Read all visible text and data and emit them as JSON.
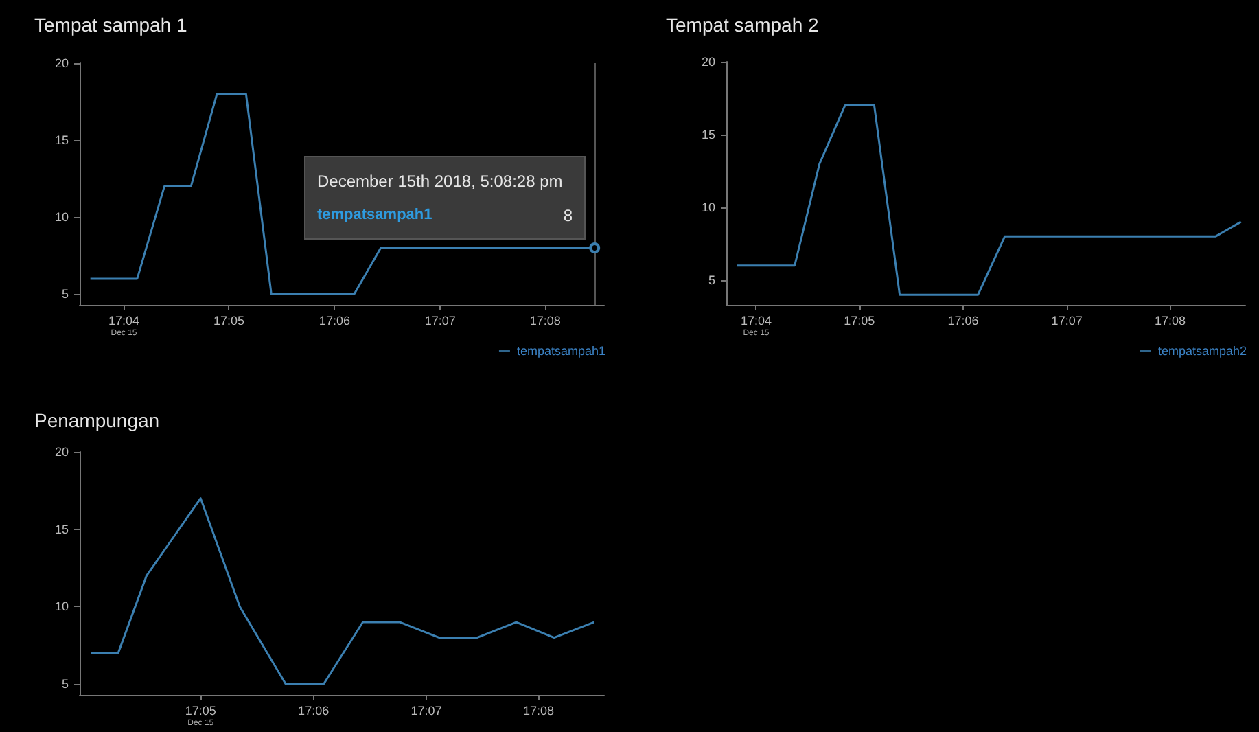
{
  "chart_data": [
    {
      "type": "line",
      "title": "Tempat sampah 1",
      "x": [
        17.0614,
        17.0688,
        17.0731,
        17.0773,
        17.0814,
        17.086,
        17.09,
        17.1031,
        17.1073,
        17.1411
      ],
      "series": [
        {
          "name": "tempatsampah1",
          "color": "#3b7fb0",
          "values": [
            6,
            6,
            12,
            12,
            18,
            18,
            5,
            5,
            8,
            8
          ]
        }
      ],
      "xlim": [
        17.0597,
        17.1426
      ],
      "xticks": [
        {
          "value": 17.0667,
          "label": "17:04\nDec 15"
        },
        {
          "value": 17.0833,
          "label": "17:05"
        },
        {
          "value": 17.1,
          "label": "17:06"
        },
        {
          "value": 17.1167,
          "label": "17:07"
        },
        {
          "value": 17.1333,
          "label": "17:08"
        }
      ],
      "ylim": [
        4.3,
        20
      ],
      "yticks": [
        5,
        10,
        15,
        20
      ],
      "grid": false,
      "legend": "bottom right",
      "marker": "none",
      "line_style": "solid",
      "ref_lines": [
        {
          "axis": "x",
          "value": 17.1411,
          "color": "#555555"
        }
      ],
      "annotations": [
        "December 15th 2018, 5:08:28 pm",
        "8"
      ]
    },
    {
      "type": "line",
      "title": "Tempat sampah 2",
      "x": [
        17.0636,
        17.0729,
        17.0769,
        17.081,
        17.0857,
        17.0898,
        17.1024,
        17.1067,
        17.1406,
        17.1447
      ],
      "series": [
        {
          "name": "tempatsampah2",
          "color": "#3b7fb0",
          "values": [
            6,
            6,
            13,
            17,
            17,
            4,
            4,
            8,
            8,
            9
          ]
        }
      ],
      "xlim": [
        17.0619,
        17.1454
      ],
      "xticks": [
        {
          "value": 17.0667,
          "label": "17:04\nDec 15"
        },
        {
          "value": 17.0833,
          "label": "17:05"
        },
        {
          "value": 17.1,
          "label": "17:06"
        },
        {
          "value": 17.1167,
          "label": "17:07"
        },
        {
          "value": 17.1333,
          "label": "17:08"
        }
      ],
      "ylim": [
        3.3,
        20
      ],
      "yticks": [
        5,
        10,
        15,
        20
      ],
      "grid": false,
      "legend": "bottom right",
      "marker": "none",
      "line_style": "solid"
    },
    {
      "type": "line",
      "title": "Penampungan",
      "x": [
        17.0671,
        17.0711,
        17.0753,
        17.0833,
        17.0891,
        17.0959,
        17.1015,
        17.1073,
        17.1128,
        17.1186,
        17.1242,
        17.13,
        17.1356,
        17.1415
      ],
      "series": [
        {
          "color": "#3b7fb0",
          "values": [
            7,
            7,
            12,
            17,
            10,
            5,
            5,
            9,
            9,
            8,
            8,
            9,
            8,
            9
          ]
        }
      ],
      "xlim": [
        17.0654,
        17.143
      ],
      "xticks": [
        {
          "value": 17.0833,
          "label": "17:05\nDec 15"
        },
        {
          "value": 17.1,
          "label": "17:06"
        },
        {
          "value": 17.1167,
          "label": "17:07"
        },
        {
          "value": 17.1333,
          "label": "17:08"
        }
      ],
      "ylim": [
        4.3,
        20
      ],
      "yticks": [
        5,
        10,
        15,
        20
      ],
      "grid": false,
      "marker": "none",
      "line_style": "solid"
    }
  ]
}
